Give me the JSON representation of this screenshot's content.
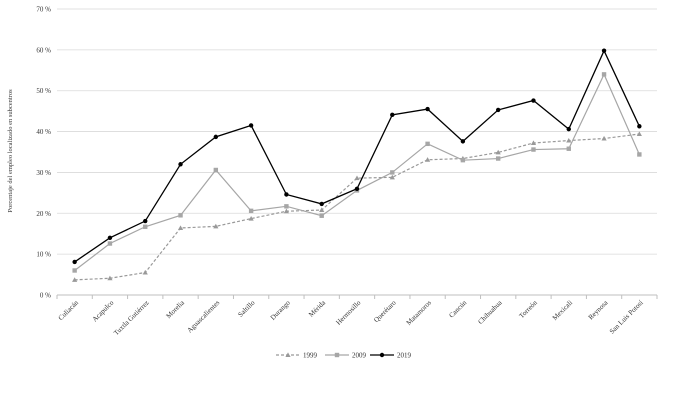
{
  "chart_data": {
    "type": "line",
    "title": "",
    "xlabel": "",
    "ylabel": "Porcentaje del empleo localizado en subcentros",
    "ylim": [
      0,
      70
    ],
    "yticks": [
      "0 %",
      "10 %",
      "20 %",
      "30 %",
      "40 %",
      "50 %",
      "60 %",
      "70 %"
    ],
    "grid": "horizontal",
    "legend_position": "bottom-center",
    "categories": [
      "Culiacán",
      "Acapulco",
      "Tuxtla Gutiérrez",
      "Morelia",
      "Aguascalientes",
      "Saltillo",
      "Durango",
      "Mérida",
      "Hermosillo",
      "Querétaro",
      "Matamoros",
      "Cancún",
      "Chihuahua",
      "Torreón",
      "Mexicali",
      "Reynosa",
      "San Luis Potosí"
    ],
    "series": [
      {
        "name": "1999",
        "color": "#999999",
        "marker": "triangle",
        "dash": "dashed",
        "values": [
          3.7,
          4.1,
          5.5,
          16.4,
          16.8,
          18.7,
          20.5,
          20.8,
          28.6,
          28.8,
          33.1,
          33.4,
          34.9,
          37.2,
          37.8,
          38.3,
          39.4
        ]
      },
      {
        "name": "2009",
        "color": "#a6a6a6",
        "marker": "square",
        "dash": "solid",
        "values": [
          6.0,
          12.6,
          16.7,
          19.5,
          30.6,
          20.6,
          21.7,
          19.4,
          25.6,
          30.0,
          37.0,
          33.0,
          33.4,
          35.6,
          35.8,
          54.0,
          34.4
        ]
      },
      {
        "name": "2019",
        "color": "#000000",
        "marker": "circle",
        "dash": "solid",
        "values": [
          8.1,
          14.0,
          18.1,
          32.0,
          38.7,
          41.5,
          24.6,
          22.3,
          26.0,
          44.1,
          45.5,
          37.6,
          45.3,
          47.6,
          40.6,
          59.8,
          41.3
        ]
      }
    ]
  }
}
